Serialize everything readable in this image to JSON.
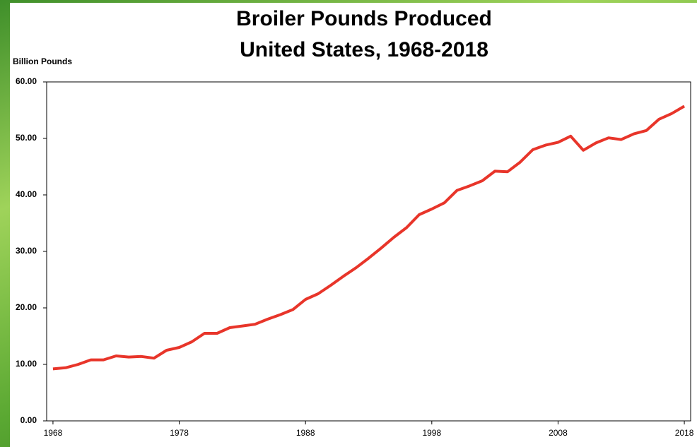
{
  "chart_data": {
    "type": "line",
    "title": "Broiler Pounds Produced",
    "subtitle": "United States, 1968-2018",
    "y_label": "Billion Pounds",
    "x": [
      1968,
      1969,
      1970,
      1971,
      1972,
      1973,
      1974,
      1975,
      1976,
      1977,
      1978,
      1979,
      1980,
      1981,
      1982,
      1983,
      1984,
      1985,
      1986,
      1987,
      1988,
      1989,
      1990,
      1991,
      1992,
      1993,
      1994,
      1995,
      1996,
      1997,
      1998,
      1999,
      2000,
      2001,
      2002,
      2003,
      2004,
      2005,
      2006,
      2007,
      2008,
      2009,
      2010,
      2011,
      2012,
      2013,
      2014,
      2015,
      2016,
      2017,
      2018
    ],
    "series": [
      {
        "name": "Broiler Pounds Produced",
        "color": "#e8352a",
        "values": [
          9.2,
          9.4,
          10.0,
          10.8,
          10.8,
          11.5,
          11.3,
          11.4,
          11.1,
          12.5,
          13.0,
          14.0,
          15.5,
          15.5,
          16.5,
          16.8,
          17.1,
          18.0,
          18.8,
          19.7,
          21.5,
          22.5,
          24.0,
          25.6,
          27.1,
          28.8,
          30.6,
          32.5,
          34.2,
          36.5,
          37.5,
          38.6,
          40.8,
          41.6,
          42.5,
          44.2,
          44.1,
          45.8,
          48.0,
          48.8,
          49.3,
          50.4,
          47.9,
          49.2,
          50.1,
          49.8,
          50.8,
          51.4,
          53.4,
          54.4,
          55.7
        ]
      }
    ],
    "xlim": [
      1967.5,
      2018.5
    ],
    "xticks": [
      1968,
      1978,
      1988,
      1998,
      2008,
      2018
    ],
    "ylim": [
      0,
      60
    ],
    "yticks": [
      {
        "value": 0,
        "label": "0.00"
      },
      {
        "value": 10,
        "label": "10.00"
      },
      {
        "value": 20,
        "label": "20.00"
      },
      {
        "value": 30,
        "label": "30.00"
      },
      {
        "value": 40,
        "label": "40.00"
      },
      {
        "value": 50,
        "label": "50.00"
      },
      {
        "value": 60,
        "label": "60.00"
      }
    ],
    "grid": false
  }
}
